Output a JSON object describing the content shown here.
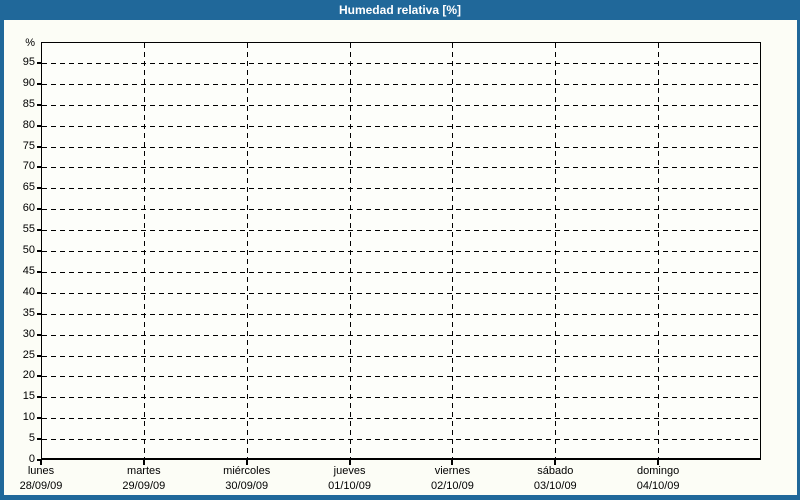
{
  "window": {
    "title": "Humedad relativa [%]"
  },
  "colors": {
    "titlebar_bg": "#20689a",
    "titlebar_text": "#ffffff",
    "window_border": "#20689a",
    "canvas_bg": "#fcfdf6",
    "plot_bg": "#fdfefa",
    "grid_line": "#000000",
    "axis_text": "#000000"
  },
  "y_axis": {
    "unit_label": "%",
    "min": 0,
    "max": 100,
    "step": 5,
    "tick_labels": [
      "0",
      "5",
      "10",
      "15",
      "20",
      "25",
      "30",
      "35",
      "40",
      "45",
      "50",
      "55",
      "60",
      "65",
      "70",
      "75",
      "80",
      "85",
      "90",
      "95"
    ]
  },
  "x_axis": {
    "days": [
      {
        "name": "lunes",
        "date": "28/09/09"
      },
      {
        "name": "martes",
        "date": "29/09/09"
      },
      {
        "name": "miércoles",
        "date": "30/09/09"
      },
      {
        "name": "jueves",
        "date": "01/10/09"
      },
      {
        "name": "viernes",
        "date": "02/10/09"
      },
      {
        "name": "sábado",
        "date": "03/10/09"
      },
      {
        "name": "domingo",
        "date": "04/10/09"
      }
    ]
  },
  "chart_data": {
    "type": "line",
    "title": "Humedad relativa [%]",
    "xlabel": "",
    "ylabel": "%",
    "ylim": [
      0,
      100
    ],
    "y_tick_step": 5,
    "categories": [
      "lunes 28/09/09",
      "martes 29/09/09",
      "miércoles 30/09/09",
      "jueves 01/10/09",
      "viernes 02/10/09",
      "sábado 03/10/09",
      "domingo 04/10/09"
    ],
    "series": [],
    "grid": true,
    "legend": "none"
  }
}
